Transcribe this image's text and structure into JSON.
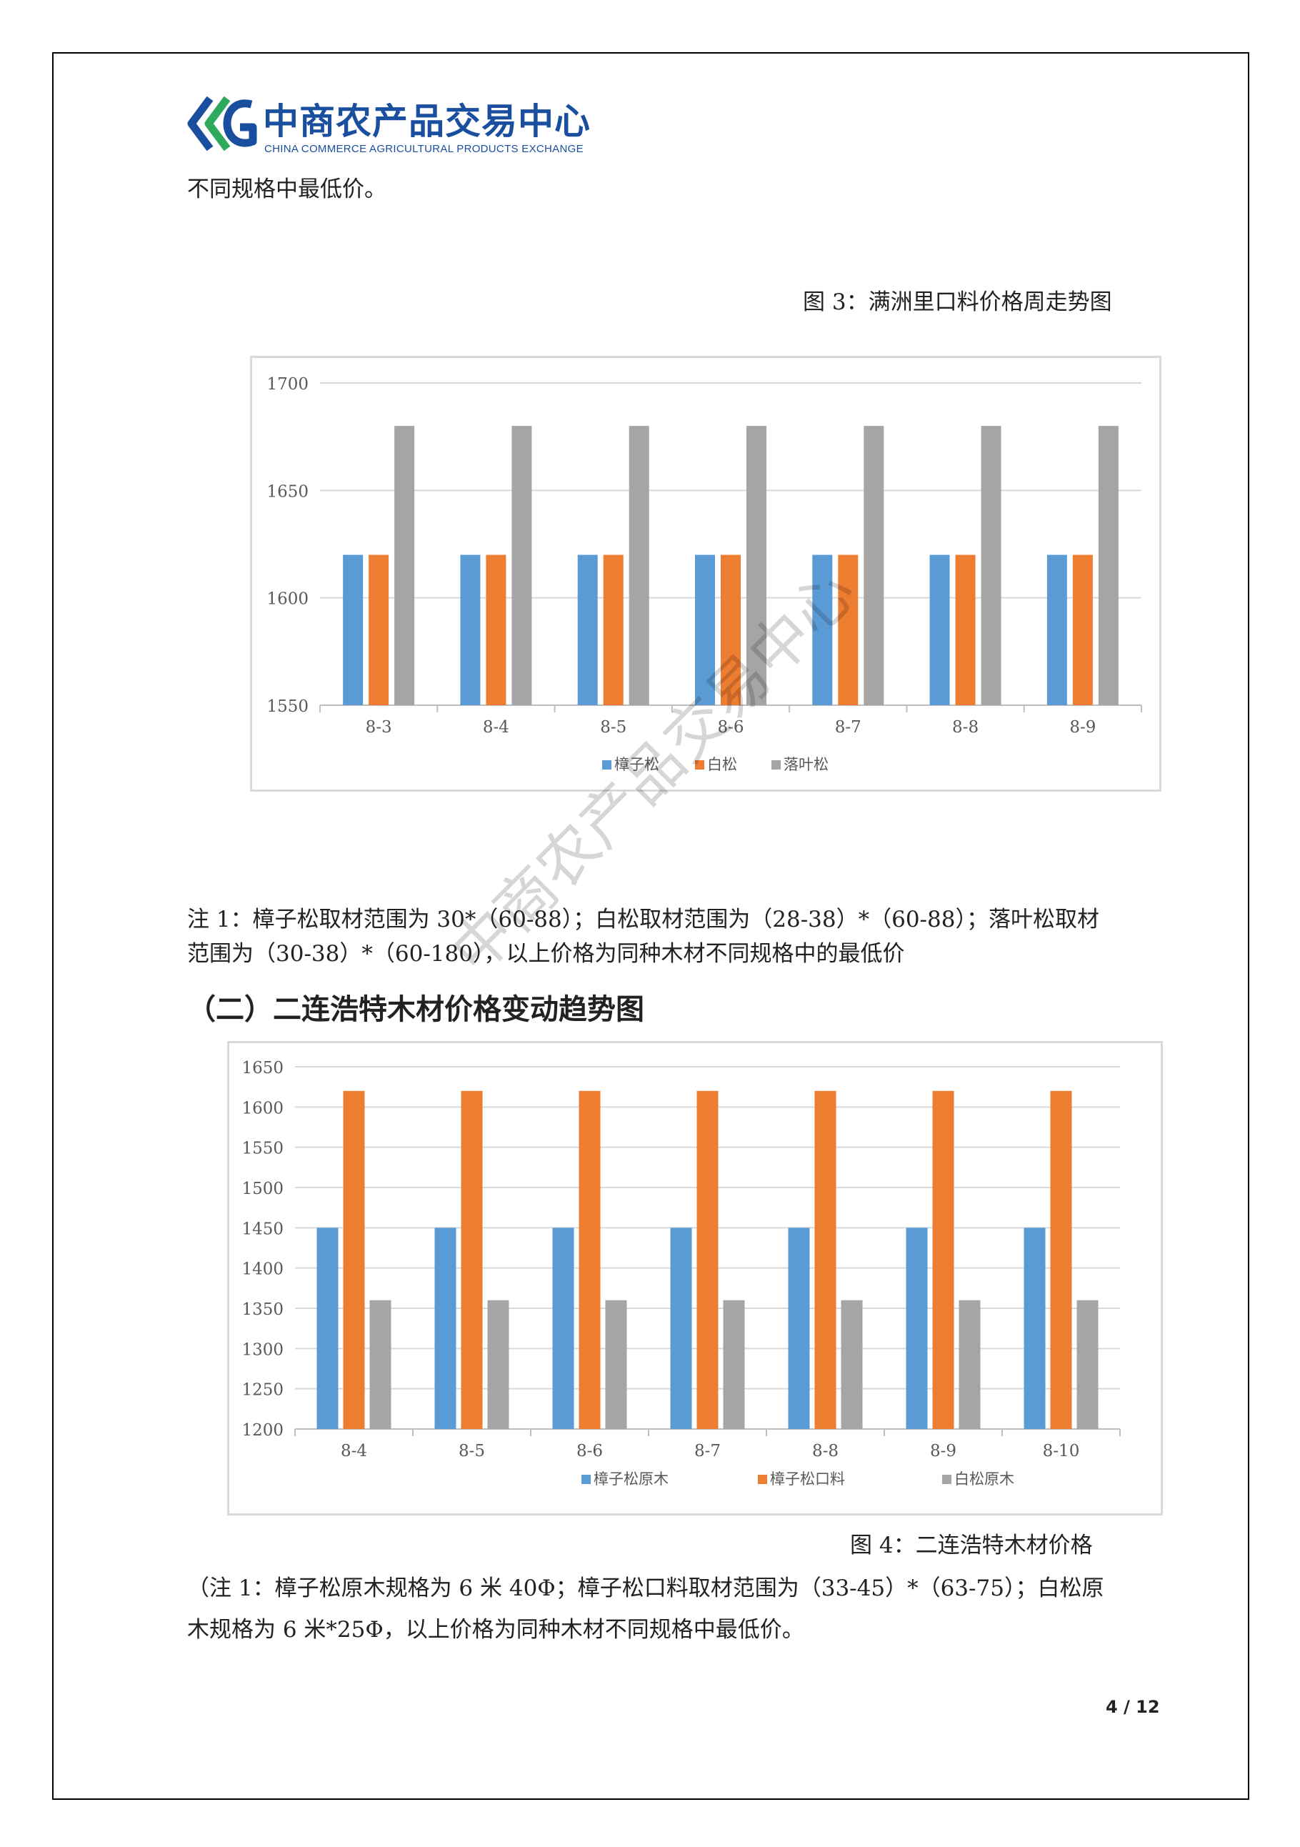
{
  "header": {
    "logo_title": "中商农产品交易中心",
    "logo_subtitle": "CHINA COMMERCE AGRICULTURAL PRODUCTS EXCHANGE",
    "brand_colors": [
      "#1a4e9e",
      "#2eaa5c"
    ]
  },
  "intro_line": "不同规格中最低价。",
  "figure3_caption": "图 3：满洲里口料价格周走势图",
  "note1": {
    "line1": "注 1：樟子松取材范围为 30*（60-88）；白松取材范围为（28-38）*（60-88）；落叶松取材",
    "line2": "范围为（30-38）*（60-180），以上价格为同种木材不同规格中的最低价"
  },
  "section_heading": "（二）二连浩特木材价格变动趋势图",
  "figure4_caption": "图 4：二连浩特木材价格",
  "note2": {
    "line1": "（注 1：樟子松原木规格为 6 米 40Φ；樟子松口料取材范围为（33-45）*（63-75）；白松原",
    "line2": "木规格为 6 米*25Φ，以上价格为同种木材不同规格中最低价。"
  },
  "watermark": "中商农产品交易中心",
  "page_number": "4 / 12",
  "chart_data": [
    {
      "type": "bar",
      "title": "",
      "xlabel": "",
      "ylabel": "",
      "categories": [
        "8-3",
        "8-4",
        "8-5",
        "8-6",
        "8-7",
        "8-8",
        "8-9"
      ],
      "ylim": [
        1550,
        1700
      ],
      "yticks": [
        1550,
        1600,
        1650,
        1700
      ],
      "grid": true,
      "legend": "bottom",
      "series": [
        {
          "name": "樟子松",
          "color": "#5b9bd5",
          "values": [
            1620,
            1620,
            1620,
            1620,
            1620,
            1620,
            1620
          ]
        },
        {
          "name": "白松",
          "color": "#ed7d31",
          "values": [
            1620,
            1620,
            1620,
            1620,
            1620,
            1620,
            1620
          ]
        },
        {
          "name": "落叶松",
          "color": "#a5a5a5",
          "values": [
            1680,
            1680,
            1680,
            1680,
            1680,
            1680,
            1680
          ]
        }
      ]
    },
    {
      "type": "bar",
      "title": "",
      "xlabel": "",
      "ylabel": "",
      "categories": [
        "8-4",
        "8-5",
        "8-6",
        "8-7",
        "8-8",
        "8-9",
        "8-10"
      ],
      "ylim": [
        1200,
        1650
      ],
      "yticks": [
        1200,
        1250,
        1300,
        1350,
        1400,
        1450,
        1500,
        1550,
        1600,
        1650
      ],
      "grid": true,
      "legend": "bottom",
      "series": [
        {
          "name": "樟子松原木",
          "color": "#5b9bd5",
          "values": [
            1450,
            1450,
            1450,
            1450,
            1450,
            1450,
            1450
          ]
        },
        {
          "name": "樟子松口料",
          "color": "#ed7d31",
          "values": [
            1620,
            1620,
            1620,
            1620,
            1620,
            1620,
            1620
          ]
        },
        {
          "name": "白松原木",
          "color": "#a5a5a5",
          "values": [
            1360,
            1360,
            1360,
            1360,
            1360,
            1360,
            1360
          ]
        }
      ]
    }
  ]
}
